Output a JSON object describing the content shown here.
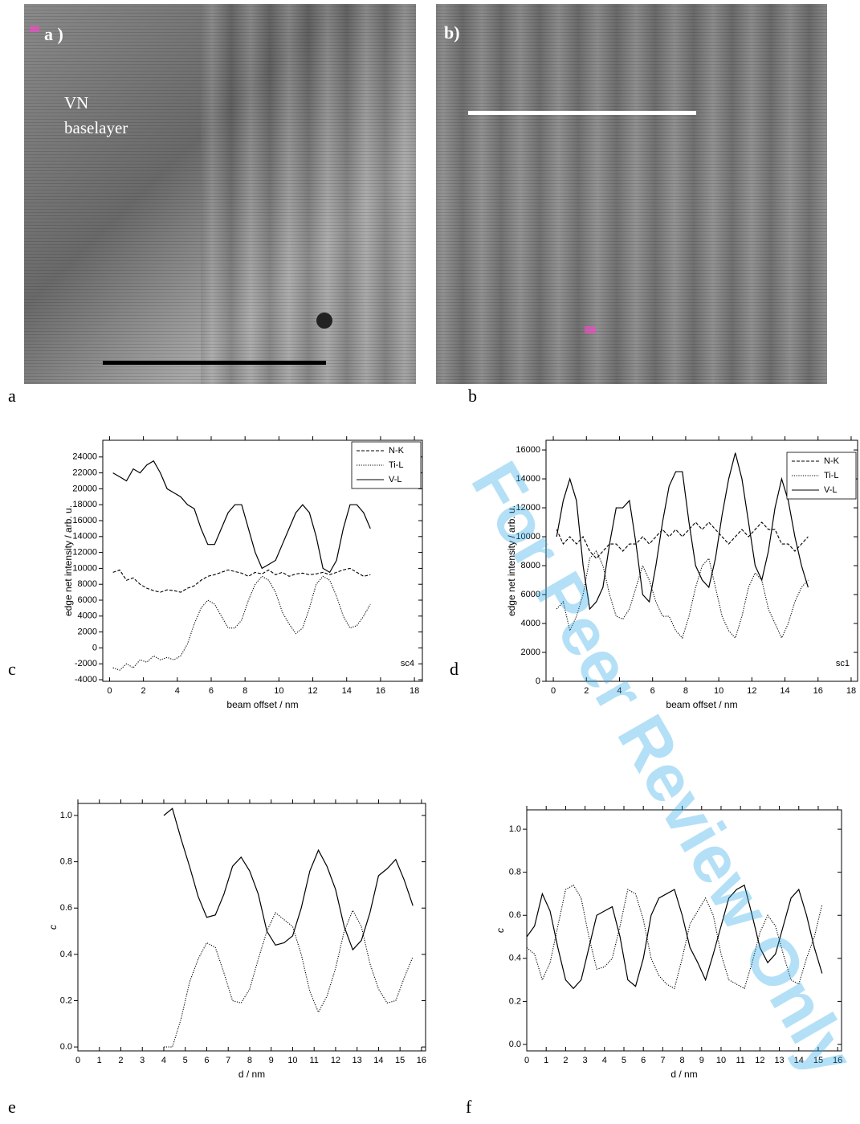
{
  "panel_labels": [
    "a",
    "b",
    "c",
    "d",
    "e",
    "f"
  ],
  "images": [
    {
      "label": "a )",
      "annotation": [
        "VN",
        "baselayer"
      ]
    },
    {
      "label": "b)"
    }
  ],
  "watermark": "For Peer Review Only",
  "chart_data": [
    {
      "type": "line",
      "x": [
        0.2,
        0.6,
        1.0,
        1.4,
        1.8,
        2.2,
        2.6,
        3.0,
        3.4,
        3.8,
        4.2,
        4.6,
        5.0,
        5.4,
        5.8,
        6.2,
        6.6,
        7.0,
        7.4,
        7.8,
        8.2,
        8.6,
        9.0,
        9.4,
        9.8,
        10.2,
        10.6,
        11.0,
        11.4,
        11.8,
        12.2,
        12.6,
        13.0,
        13.4,
        13.8,
        14.2,
        14.6,
        15.0,
        15.4
      ],
      "xlim": [
        -0.4,
        18.47
      ],
      "xticks": [
        0,
        2,
        4,
        6,
        8,
        10,
        12,
        14,
        16,
        18
      ],
      "ylim": [
        -4200,
        26100
      ],
      "yticks": [
        -4000,
        -2000,
        0,
        2000,
        4000,
        6000,
        8000,
        10000,
        12000,
        14000,
        16000,
        18000,
        20000,
        22000,
        24000
      ],
      "xlabel": "beam offset / nm",
      "ylabel": "edge net intensity / arb. u.",
      "annotation": "sc4",
      "legend": "upper right",
      "grid": false,
      "series": [
        {
          "name": "N-K",
          "color": "#000000",
          "dash": "dashed",
          "values": [
            9500,
            9800,
            8500,
            8800,
            8000,
            7500,
            7200,
            7000,
            7300,
            7200,
            7000,
            7500,
            7800,
            8500,
            9000,
            9200,
            9500,
            9800,
            9600,
            9400,
            9000,
            9500,
            9300,
            9800,
            9200,
            9500,
            9000,
            9300,
            9400,
            9200,
            9300,
            9500,
            9200,
            9500,
            9800,
            10000,
            9500,
            9000,
            9200
          ]
        },
        {
          "name": "Ti-L",
          "color": "#000000",
          "dash": "dotted",
          "values": [
            -2500,
            -2800,
            -2000,
            -2500,
            -1500,
            -1800,
            -1000,
            -1500,
            -1200,
            -1500,
            -1000,
            500,
            3000,
            5000,
            6000,
            5500,
            4000,
            2500,
            2500,
            3500,
            6000,
            8000,
            9000,
            8500,
            7000,
            4500,
            3000,
            1800,
            2500,
            5000,
            8000,
            9000,
            8500,
            6500,
            4000,
            2500,
            2800,
            4000,
            5500
          ]
        },
        {
          "name": "V-L",
          "color": "#000000",
          "dash": "solid",
          "values": [
            22000,
            21500,
            21000,
            22500,
            22000,
            23000,
            23500,
            22000,
            20000,
            19500,
            19000,
            18000,
            17500,
            15000,
            13000,
            13000,
            15000,
            17000,
            18000,
            18000,
            15000,
            12000,
            10000,
            10500,
            11000,
            13000,
            15000,
            17000,
            18000,
            17000,
            14000,
            10000,
            9500,
            11000,
            15000,
            18000,
            18000,
            17000,
            15000
          ]
        }
      ]
    },
    {
      "type": "line",
      "x": [
        0.2,
        0.6,
        1.0,
        1.4,
        1.8,
        2.2,
        2.6,
        3.0,
        3.4,
        3.8,
        4.2,
        4.6,
        5.0,
        5.4,
        5.8,
        6.2,
        6.6,
        7.0,
        7.4,
        7.8,
        8.2,
        8.6,
        9.0,
        9.4,
        9.8,
        10.2,
        10.6,
        11.0,
        11.4,
        11.8,
        12.2,
        12.6,
        13.0,
        13.4,
        13.8,
        14.2,
        14.6,
        15.0,
        15.4
      ],
      "xlim": [
        -0.44,
        18.39
      ],
      "xticks": [
        0,
        2,
        4,
        6,
        8,
        10,
        12,
        14,
        16,
        18
      ],
      "ylim": [
        0,
        16670
      ],
      "yticks": [
        0,
        2000,
        4000,
        6000,
        8000,
        10000,
        12000,
        14000,
        16000
      ],
      "xlabel": "beam offset / nm",
      "ylabel": "edge net intensity / arb. u.",
      "annotation": "sc1",
      "legend": "upper right",
      "grid": false,
      "series": [
        {
          "name": "N-K",
          "color": "#000000",
          "dash": "dashed",
          "values": [
            10500,
            9500,
            10000,
            9500,
            10000,
            9000,
            8500,
            9000,
            9500,
            9500,
            9000,
            9500,
            9500,
            10000,
            9500,
            10000,
            10500,
            10000,
            10500,
            10000,
            10500,
            11000,
            10500,
            11000,
            10500,
            10000,
            9500,
            10000,
            10500,
            10000,
            10500,
            11000,
            10500,
            10500,
            9500,
            9500,
            9000,
            9500,
            10000
          ]
        },
        {
          "name": "Ti-L",
          "color": "#000000",
          "dash": "dotted",
          "values": [
            5000,
            5500,
            3500,
            4500,
            6000,
            8500,
            9000,
            8000,
            6000,
            4500,
            4300,
            5000,
            6500,
            8000,
            7000,
            5500,
            4500,
            4500,
            3500,
            3000,
            4500,
            6500,
            8000,
            8500,
            6500,
            4500,
            3500,
            3000,
            4500,
            6500,
            7500,
            7000,
            5000,
            4000,
            3000,
            4000,
            5500,
            6500,
            7000
          ]
        },
        {
          "name": "V-L",
          "color": "#000000",
          "dash": "solid",
          "values": [
            10000,
            12500,
            14000,
            12500,
            8000,
            5000,
            5500,
            6500,
            9500,
            12000,
            12000,
            12500,
            9500,
            6000,
            5500,
            8000,
            11000,
            13500,
            14500,
            14500,
            11000,
            8000,
            7000,
            6500,
            8500,
            11500,
            14000,
            15800,
            14000,
            11000,
            8000,
            7000,
            9000,
            12000,
            14000,
            12500,
            10000,
            8000,
            6500
          ]
        }
      ]
    },
    {
      "type": "line",
      "x": [
        4.0,
        4.4,
        4.8,
        5.2,
        5.6,
        6.0,
        6.4,
        6.8,
        7.2,
        7.6,
        8.0,
        8.4,
        8.8,
        9.2,
        9.6,
        10.0,
        10.4,
        10.8,
        11.2,
        11.6,
        12.0,
        12.4,
        12.8,
        13.2,
        13.6,
        14.0,
        14.4,
        14.8,
        15.2,
        15.6
      ],
      "xlim": [
        0,
        16.19
      ],
      "xticks": [
        0,
        1,
        2,
        3,
        4,
        5,
        6,
        7,
        8,
        9,
        10,
        11,
        12,
        13,
        14,
        15,
        16
      ],
      "ylim": [
        -0.017,
        1.052
      ],
      "yticks": [
        {
          "value": 0,
          "label": "0.0"
        },
        0.2,
        0.4,
        0.6,
        0.8,
        {
          "value": 1,
          "label": "1.0"
        }
      ],
      "xlabel": "d / nm",
      "ylabel": "c",
      "grid": false,
      "series": [
        {
          "color": "#000000",
          "dash": "solid",
          "values": [
            1.0,
            1.03,
            0.9,
            0.78,
            0.65,
            0.56,
            0.57,
            0.66,
            0.78,
            0.82,
            0.76,
            0.66,
            0.5,
            0.44,
            0.45,
            0.48,
            0.6,
            0.76,
            0.85,
            0.78,
            0.68,
            0.52,
            0.42,
            0.46,
            0.58,
            0.74,
            0.77,
            0.81,
            0.72,
            0.61
          ]
        },
        {
          "color": "#000000",
          "dash": "dotted",
          "values": [
            0.0,
            0.0,
            0.12,
            0.28,
            0.38,
            0.45,
            0.43,
            0.32,
            0.2,
            0.19,
            0.25,
            0.38,
            0.5,
            0.58,
            0.55,
            0.52,
            0.4,
            0.24,
            0.15,
            0.22,
            0.34,
            0.5,
            0.59,
            0.52,
            0.36,
            0.25,
            0.19,
            0.2,
            0.3,
            0.39
          ]
        }
      ]
    },
    {
      "type": "line",
      "x": [
        0,
        0.4,
        0.8,
        1.2,
        1.6,
        2.0,
        2.4,
        2.8,
        3.2,
        3.6,
        4.0,
        4.4,
        4.8,
        5.2,
        5.6,
        6.0,
        6.4,
        6.8,
        7.2,
        7.6,
        8.0,
        8.4,
        8.8,
        9.2,
        9.6,
        10.0,
        10.4,
        10.8,
        11.2,
        11.6,
        12.0,
        12.4,
        12.8,
        13.2,
        13.6,
        14.0,
        14.4,
        14.8,
        15.2
      ],
      "xlim": [
        0,
        16.2
      ],
      "xticks": [
        0,
        1,
        2,
        3,
        4,
        5,
        6,
        7,
        8,
        9,
        10,
        11,
        12,
        13,
        14,
        15,
        16
      ],
      "ylim": [
        -0.03,
        1.09
      ],
      "yticks": [
        {
          "value": 0,
          "label": "0.0"
        },
        0.2,
        0.4,
        0.6,
        0.8,
        {
          "value": 1,
          "label": "1.0"
        }
      ],
      "xlabel": "d / nm",
      "ylabel": "c",
      "grid": false,
      "series": [
        {
          "color": "#000000",
          "dash": "solid",
          "values": [
            0.5,
            0.55,
            0.7,
            0.62,
            0.45,
            0.3,
            0.26,
            0.3,
            0.45,
            0.6,
            0.62,
            0.64,
            0.5,
            0.3,
            0.27,
            0.4,
            0.6,
            0.68,
            0.7,
            0.72,
            0.6,
            0.45,
            0.38,
            0.3,
            0.42,
            0.55,
            0.68,
            0.72,
            0.74,
            0.6,
            0.45,
            0.38,
            0.42,
            0.55,
            0.68,
            0.72,
            0.6,
            0.45,
            0.33
          ]
        },
        {
          "color": "#000000",
          "dash": "dotted",
          "values": [
            0.45,
            0.42,
            0.3,
            0.38,
            0.55,
            0.72,
            0.74,
            0.68,
            0.5,
            0.35,
            0.36,
            0.4,
            0.55,
            0.72,
            0.7,
            0.58,
            0.4,
            0.32,
            0.28,
            0.26,
            0.4,
            0.56,
            0.62,
            0.68,
            0.6,
            0.42,
            0.3,
            0.28,
            0.26,
            0.38,
            0.52,
            0.6,
            0.55,
            0.42,
            0.3,
            0.28,
            0.4,
            0.5,
            0.65
          ]
        }
      ]
    }
  ]
}
